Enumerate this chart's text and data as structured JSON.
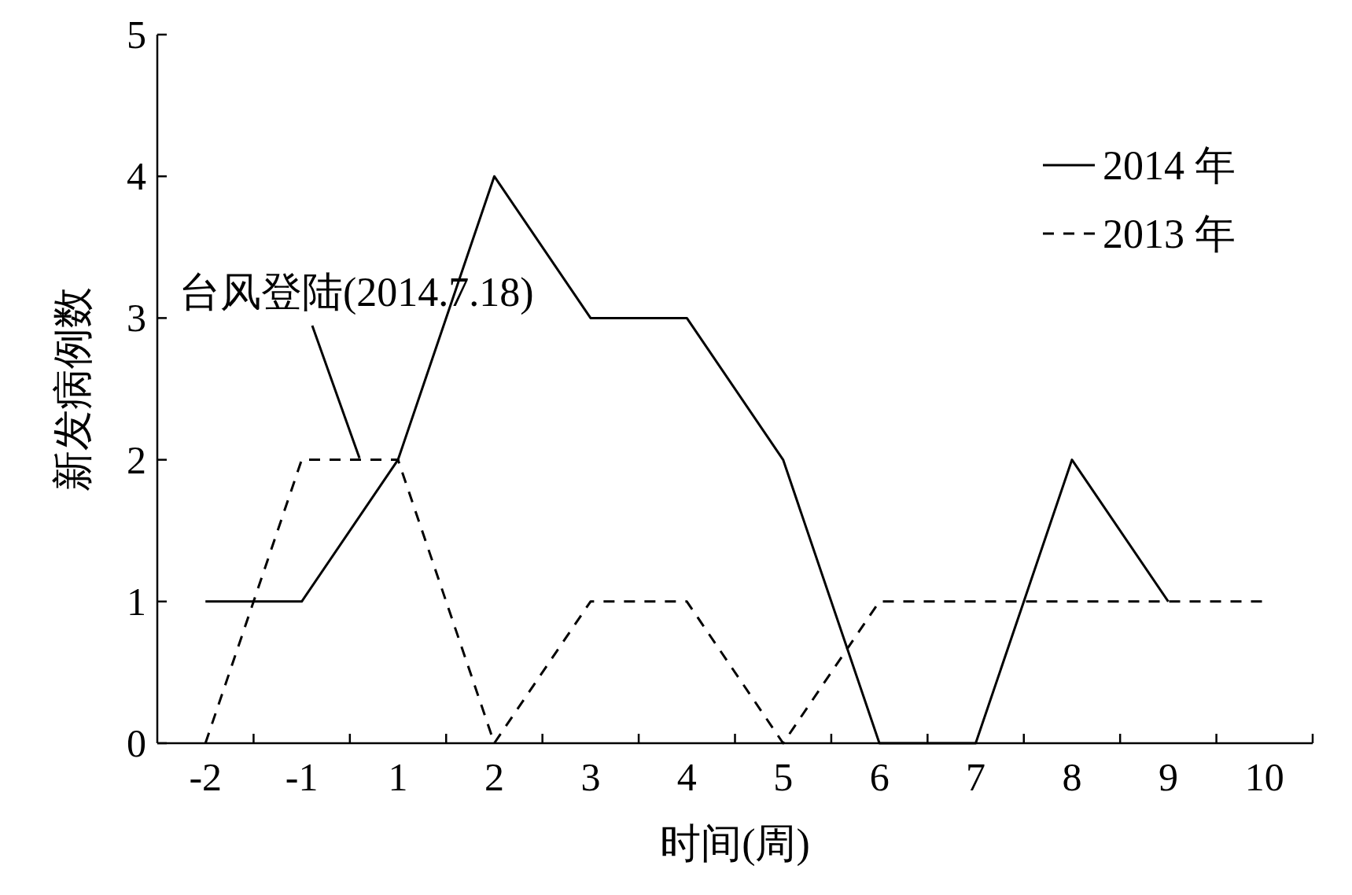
{
  "chart_data": {
    "type": "line",
    "xlabel": "时间(周)",
    "ylabel": "新发病例数",
    "categories": [
      "-2",
      "-1",
      "1",
      "2",
      "3",
      "4",
      "5",
      "6",
      "7",
      "8",
      "9",
      "10"
    ],
    "series": [
      {
        "name": "2014 年",
        "color": "#000000",
        "line_style": "solid",
        "values": [
          1,
          1,
          2,
          4,
          3,
          3,
          2,
          0,
          0,
          2,
          1,
          null
        ]
      },
      {
        "name": "2013 年",
        "color": "#000000",
        "line_style": "dashed",
        "values": [
          0,
          2,
          2,
          0,
          1,
          1,
          0,
          1,
          1,
          1,
          1,
          1
        ]
      }
    ],
    "ylim": [
      0,
      5
    ],
    "yticks": [
      0,
      1,
      2,
      3,
      4,
      5
    ],
    "annotations": [
      {
        "text": "台风登陆(2014.7.18)",
        "y": 2
      }
    ],
    "grid": false,
    "legend": "top right",
    "marker": "none"
  }
}
